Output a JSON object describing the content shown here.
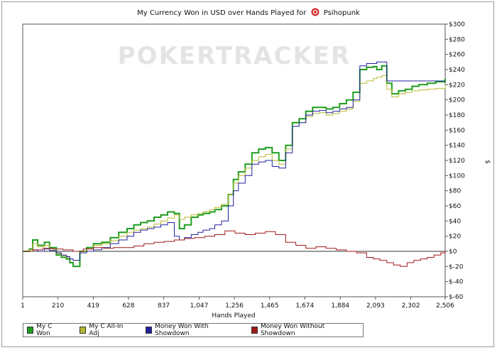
{
  "title": {
    "text_before": "My Currency Won in USD over Hands Played for",
    "player": "Psihopunk",
    "brand_icon": "poker-chip-icon"
  },
  "watermark": "POKERTRACKER",
  "chart_data": {
    "type": "line",
    "xlabel": "Hands Played",
    "ylabel": "$",
    "xlim": [
      1,
      2506
    ],
    "ylim": [
      -60,
      300
    ],
    "x_ticks": [
      1,
      210,
      419,
      628,
      837,
      1047,
      1256,
      1465,
      1674,
      1884,
      2093,
      2302,
      2506
    ],
    "x_tick_labels": [
      "1",
      "210",
      "419",
      "628",
      "837",
      "1,047",
      "1,256",
      "1,465",
      "1,674",
      "1,884",
      "2,093",
      "2,302",
      "2,506"
    ],
    "y_ticks": [
      300,
      280,
      260,
      240,
      220,
      200,
      180,
      160,
      140,
      120,
      100,
      80,
      60,
      40,
      20,
      0,
      -20,
      -40,
      -60
    ],
    "y_tick_labels": [
      "$300",
      "$280",
      "$260",
      "$240",
      "$220",
      "$200",
      "$180",
      "$160",
      "$140",
      "$120",
      "$100",
      "$80",
      "$60",
      "$40",
      "$20",
      "$0",
      "$-20",
      "$-40",
      "$-60"
    ],
    "y_axis_side": "right",
    "grid": false,
    "zero_line": true,
    "legend_position": "bottom",
    "series": [
      {
        "name": "My C Won",
        "color": "#1f9e1f",
        "x": [
          1,
          40,
          60,
          90,
          130,
          160,
          200,
          230,
          260,
          280,
          300,
          340,
          380,
          420,
          470,
          520,
          570,
          620,
          660,
          700,
          740,
          780,
          820,
          860,
          900,
          930,
          960,
          1000,
          1040,
          1070,
          1110,
          1140,
          1180,
          1220,
          1250,
          1280,
          1320,
          1360,
          1400,
          1440,
          1480,
          1520,
          1560,
          1600,
          1640,
          1680,
          1720,
          1760,
          1800,
          1840,
          1880,
          1920,
          1960,
          2000,
          2040,
          2080,
          2100,
          2130,
          2160,
          2190,
          2230,
          2270,
          2310,
          2350,
          2400,
          2450,
          2506
        ],
        "y": [
          0,
          3,
          15,
          8,
          12,
          5,
          -5,
          -8,
          -10,
          -15,
          -20,
          0,
          5,
          10,
          12,
          18,
          25,
          30,
          35,
          38,
          40,
          45,
          48,
          52,
          50,
          30,
          35,
          45,
          48,
          50,
          52,
          55,
          60,
          75,
          95,
          105,
          115,
          130,
          135,
          137,
          130,
          120,
          140,
          170,
          175,
          185,
          190,
          190,
          188,
          190,
          195,
          200,
          210,
          240,
          243,
          244,
          240,
          245,
          222,
          208,
          212,
          214,
          218,
          220,
          222,
          224,
          228
        ]
      },
      {
        "name": "My C All-In Adj",
        "color": "#b8b830",
        "x": [
          1,
          40,
          60,
          90,
          130,
          160,
          200,
          230,
          260,
          280,
          300,
          340,
          380,
          420,
          470,
          520,
          570,
          620,
          660,
          700,
          740,
          780,
          820,
          860,
          900,
          930,
          960,
          1000,
          1040,
          1070,
          1110,
          1140,
          1180,
          1220,
          1250,
          1280,
          1320,
          1360,
          1400,
          1440,
          1480,
          1520,
          1560,
          1600,
          1640,
          1680,
          1720,
          1760,
          1800,
          1840,
          1880,
          1920,
          1960,
          2000,
          2040,
          2080,
          2100,
          2130,
          2160,
          2190,
          2230,
          2270,
          2310,
          2350,
          2400,
          2450,
          2506
        ],
        "y": [
          0,
          2,
          10,
          6,
          8,
          3,
          -3,
          -6,
          -8,
          -10,
          -12,
          0,
          3,
          8,
          10,
          14,
          20,
          25,
          28,
          30,
          32,
          36,
          40,
          44,
          48,
          42,
          45,
          48,
          50,
          52,
          55,
          58,
          62,
          75,
          90,
          100,
          110,
          120,
          125,
          128,
          120,
          115,
          135,
          165,
          170,
          178,
          182,
          183,
          180,
          182,
          185,
          188,
          198,
          222,
          225,
          228,
          230,
          232,
          214,
          204,
          208,
          210,
          212,
          213,
          214,
          215,
          220
        ]
      },
      {
        "name": "Money Won With Showdown",
        "color": "#2020a0",
        "x": [
          1,
          40,
          60,
          90,
          130,
          160,
          200,
          230,
          260,
          280,
          300,
          340,
          380,
          420,
          470,
          520,
          570,
          620,
          660,
          700,
          740,
          780,
          820,
          860,
          900,
          930,
          960,
          1000,
          1040,
          1070,
          1110,
          1140,
          1180,
          1220,
          1250,
          1280,
          1320,
          1360,
          1400,
          1440,
          1480,
          1520,
          1560,
          1600,
          1640,
          1680,
          1720,
          1760,
          1800,
          1840,
          1880,
          1920,
          1960,
          2000,
          2040,
          2080,
          2100,
          2130,
          2160,
          2190,
          2230,
          2270,
          2310,
          2350,
          2400,
          2450,
          2506
        ],
        "y": [
          0,
          0,
          2,
          0,
          3,
          1,
          -2,
          -5,
          -7,
          -10,
          -12,
          -2,
          0,
          2,
          5,
          10,
          15,
          20,
          25,
          28,
          30,
          32,
          35,
          38,
          20,
          15,
          18,
          22,
          25,
          28,
          30,
          35,
          40,
          60,
          80,
          90,
          100,
          115,
          118,
          120,
          112,
          110,
          130,
          165,
          170,
          180,
          185,
          186,
          183,
          185,
          188,
          190,
          200,
          245,
          248,
          248,
          250,
          250,
          225,
          225,
          225,
          225,
          225,
          225,
          225,
          225,
          225
        ]
      },
      {
        "name": "Money Won Without Showdown",
        "color": "#a01818",
        "x": [
          1,
          60,
          120,
          180,
          240,
          300,
          360,
          420,
          480,
          540,
          600,
          660,
          720,
          780,
          840,
          900,
          960,
          1020,
          1080,
          1140,
          1200,
          1260,
          1320,
          1380,
          1440,
          1500,
          1560,
          1620,
          1680,
          1740,
          1800,
          1860,
          1920,
          1980,
          2040,
          2080,
          2120,
          2160,
          2200,
          2240,
          2280,
          2320,
          2360,
          2400,
          2440,
          2480,
          2506
        ],
        "y": [
          0,
          2,
          4,
          3,
          2,
          0,
          3,
          5,
          4,
          5,
          5,
          7,
          10,
          12,
          13,
          15,
          17,
          18,
          20,
          22,
          27,
          24,
          22,
          24,
          26,
          22,
          12,
          8,
          4,
          6,
          4,
          2,
          0,
          -2,
          -8,
          -10,
          -12,
          -15,
          -18,
          -20,
          -15,
          -12,
          -10,
          -8,
          -5,
          -2,
          2
        ]
      }
    ]
  }
}
